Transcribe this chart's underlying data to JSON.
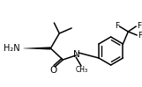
{
  "bg_color": "#ffffff",
  "line_color": "#000000",
  "line_width": 1.1,
  "font_size": 6.5,
  "fig_width": 1.61,
  "fig_height": 0.99,
  "dpi": 100,
  "xlim": [
    0,
    161
  ],
  "ylim": [
    0,
    99
  ]
}
